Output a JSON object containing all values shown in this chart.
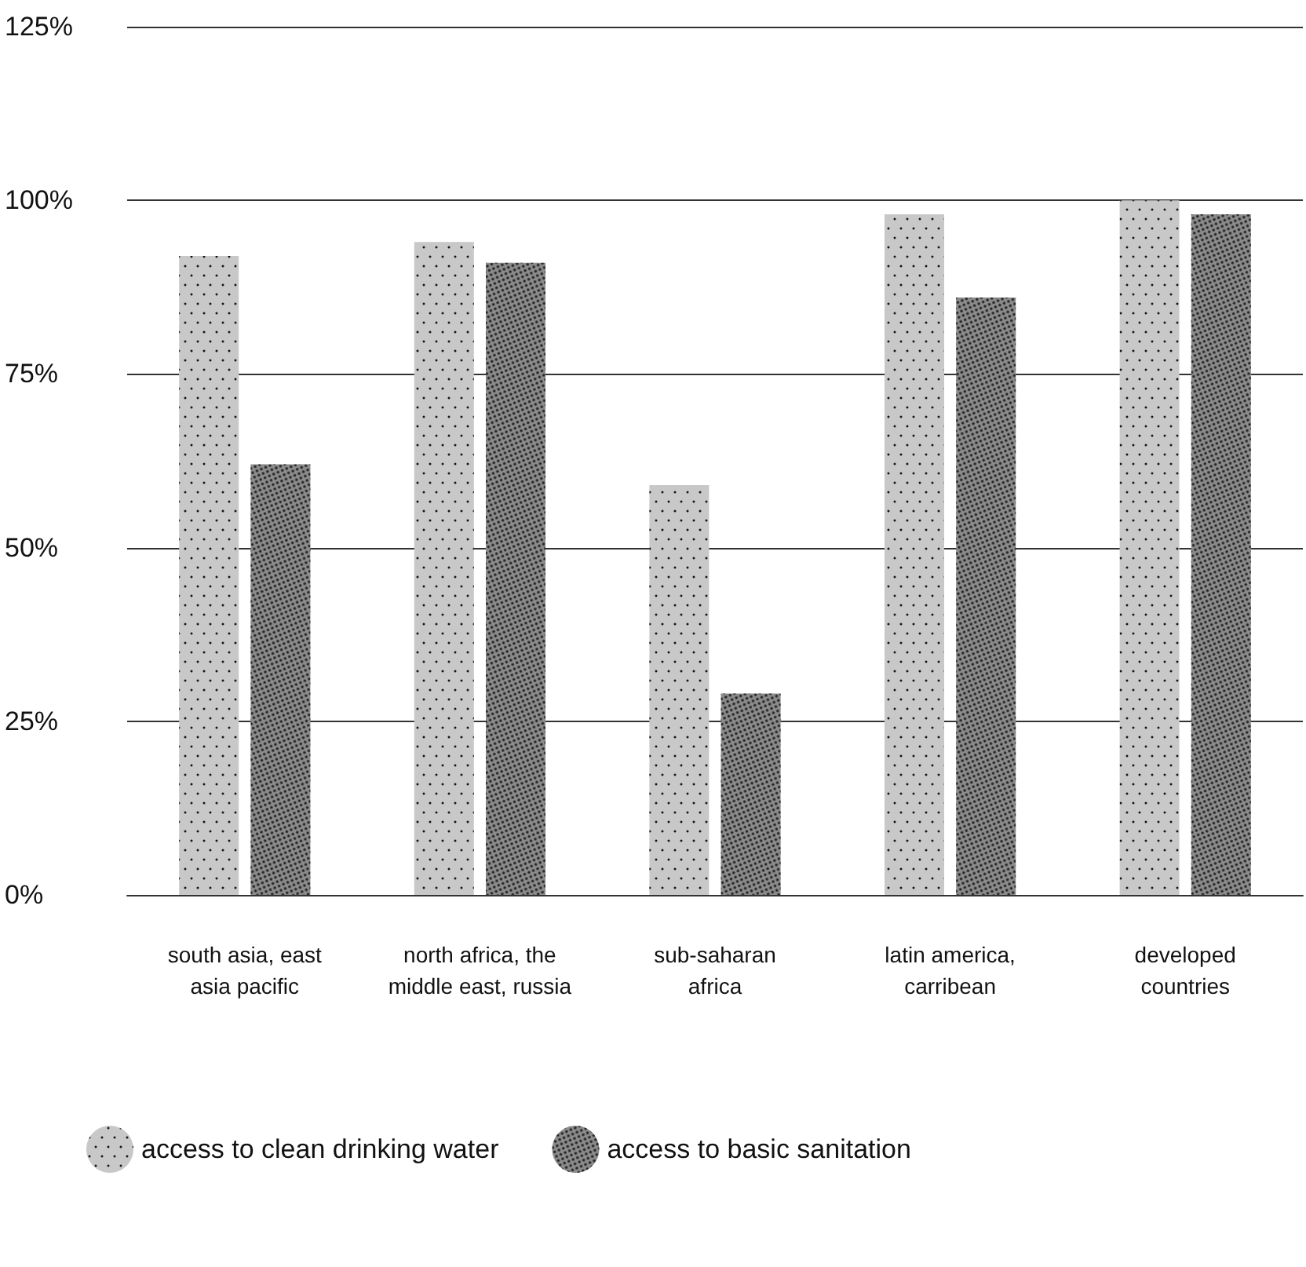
{
  "chart_data": {
    "type": "bar",
    "categories": [
      "south asia, east\nasia pacific",
      "north africa, the\nmiddle east, russia",
      "sub-saharan\nafrica",
      "latin america,\ncarribean",
      "developed\ncountries"
    ],
    "series": [
      {
        "name": "access to clean drinking water",
        "color": "#c8c8c8",
        "values": [
          92,
          94,
          59,
          98,
          100
        ]
      },
      {
        "name": "access to basic sanitation",
        "color": "#8c8c8c",
        "values": [
          62,
          91,
          29,
          86,
          98
        ]
      }
    ],
    "ylim": [
      0,
      125
    ],
    "yticks": [
      {
        "value": 0,
        "label": "0%"
      },
      {
        "value": 25,
        "label": "25%"
      },
      {
        "value": 50,
        "label": "50%"
      },
      {
        "value": 75,
        "label": "75%"
      },
      {
        "value": 100,
        "label": "100%"
      },
      {
        "value": 125,
        "label": "125%"
      }
    ],
    "grid": "y",
    "legend": "bottom left"
  }
}
